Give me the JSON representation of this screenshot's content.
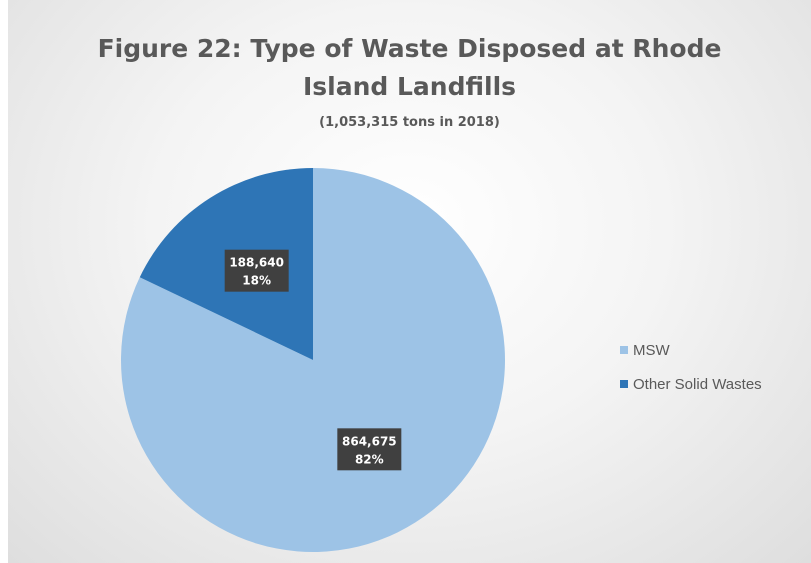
{
  "chart_data": {
    "type": "pie",
    "title_lines": [
      "Figure 22: Type of Waste Disposed at Rhode",
      "Island Landfills"
    ],
    "subtitle": "(1,053,315 tons in 2018)",
    "categories": [
      "MSW",
      "Other Solid Wastes"
    ],
    "values": [
      864675,
      188640
    ],
    "percent_labels": [
      "82%",
      "18%"
    ],
    "value_labels": [
      "864,675",
      "188,640"
    ],
    "colors": [
      "#9DC3E6",
      "#2E75B6"
    ],
    "label_box_color": "#404040",
    "legend_position": "right"
  }
}
